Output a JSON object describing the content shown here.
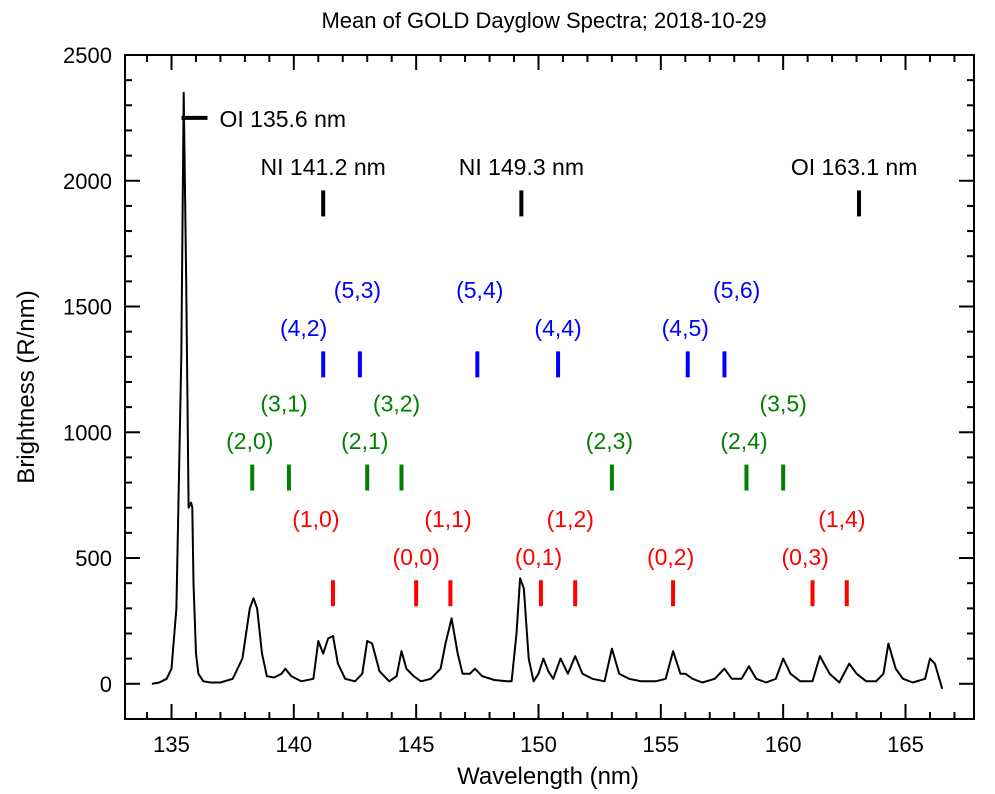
{
  "chart_data": {
    "type": "line",
    "title": "Mean of GOLD Dayglow Spectra; 2018-10-29",
    "xlabel": "Wavelength (nm)",
    "ylabel": "Brightness (R/nm)",
    "xlim": [
      133.1,
      167.8
    ],
    "ylim": [
      -140,
      2500
    ],
    "x_ticks": [
      135,
      140,
      145,
      150,
      155,
      160,
      165
    ],
    "y_ticks": [
      0,
      500,
      1000,
      1500,
      2000,
      2500
    ],
    "x_minor_step": 1,
    "y_minor_step": 100,
    "legend_marker": {
      "x": 135.9,
      "y": 2250,
      "label": "OI 135.6 nm",
      "color": "#000000"
    },
    "series": [
      {
        "color": "#000000",
        "x": [
          134.2,
          134.5,
          134.8,
          135.0,
          135.2,
          135.4,
          135.5,
          135.6,
          135.7,
          135.8,
          135.85,
          135.9,
          136.0,
          136.1,
          136.3,
          136.6,
          137.0,
          137.5,
          137.9,
          138.2,
          138.35,
          138.5,
          138.7,
          138.9,
          139.2,
          139.5,
          139.65,
          139.9,
          140.3,
          140.8,
          141.0,
          141.2,
          141.4,
          141.6,
          141.8,
          142.1,
          142.5,
          142.8,
          143.0,
          143.2,
          143.5,
          143.9,
          144.2,
          144.4,
          144.6,
          144.9,
          145.2,
          145.6,
          146.0,
          146.2,
          146.45,
          146.7,
          146.9,
          147.2,
          147.4,
          147.7,
          148.2,
          148.7,
          148.9,
          149.1,
          149.25,
          149.4,
          149.6,
          149.8,
          150.0,
          150.2,
          150.4,
          150.6,
          150.9,
          151.2,
          151.5,
          151.8,
          152.2,
          152.7,
          153.0,
          153.3,
          153.7,
          154.2,
          154.8,
          155.2,
          155.5,
          155.8,
          156.0,
          156.3,
          156.7,
          157.2,
          157.6,
          157.9,
          158.3,
          158.6,
          158.9,
          159.3,
          159.7,
          160.0,
          160.3,
          160.7,
          161.2,
          161.5,
          161.9,
          162.3,
          162.7,
          163.0,
          163.4,
          163.8,
          164.1,
          164.3,
          164.6,
          164.9,
          165.3,
          165.8,
          166.0,
          166.2,
          166.5
        ],
        "values": [
          0,
          5,
          20,
          60,
          300,
          1300,
          2350,
          1600,
          700,
          720,
          700,
          400,
          120,
          40,
          10,
          5,
          5,
          20,
          100,
          300,
          340,
          300,
          120,
          30,
          25,
          40,
          60,
          30,
          10,
          20,
          170,
          120,
          180,
          190,
          80,
          20,
          10,
          40,
          170,
          160,
          50,
          10,
          30,
          130,
          60,
          30,
          10,
          20,
          60,
          160,
          260,
          120,
          40,
          40,
          60,
          30,
          15,
          10,
          10,
          200,
          420,
          380,
          100,
          10,
          40,
          100,
          50,
          20,
          100,
          40,
          110,
          40,
          20,
          10,
          140,
          40,
          20,
          10,
          10,
          20,
          130,
          40,
          40,
          20,
          5,
          20,
          60,
          20,
          20,
          70,
          20,
          5,
          20,
          100,
          40,
          10,
          10,
          110,
          40,
          5,
          80,
          40,
          10,
          10,
          40,
          160,
          60,
          20,
          5,
          20,
          100,
          80,
          -20
        ]
      }
    ],
    "line_markers": [
      {
        "label": "NI 141.2 nm",
        "x": 141.2,
        "y": 1910,
        "color": "#000000",
        "label_x": 141.2,
        "label_y": 2055
      },
      {
        "label": "NI 149.3 nm",
        "x": 149.3,
        "y": 1910,
        "color": "#000000",
        "label_x": 149.3,
        "label_y": 2055
      },
      {
        "label": "OI 163.1 nm",
        "x": 163.1,
        "y": 1910,
        "color": "#000000",
        "label_x": 162.9,
        "label_y": 2055
      },
      {
        "label": "(4,2)",
        "x": 141.2,
        "y": 1270,
        "color": "#0000ff",
        "label_x": 140.4,
        "label_y": 1415
      },
      {
        "label": "(5,3)",
        "x": 142.7,
        "y": 1270,
        "color": "#0000ff",
        "label_x": 142.6,
        "label_y": 1565
      },
      {
        "label": "(5,4)",
        "x": 147.5,
        "y": 1270,
        "color": "#0000ff",
        "label_x": 147.6,
        "label_y": 1565
      },
      {
        "label": "(4,4)",
        "x": 150.8,
        "y": 1270,
        "color": "#0000ff",
        "label_x": 150.8,
        "label_y": 1415
      },
      {
        "label": "(4,5)",
        "x": 156.1,
        "y": 1270,
        "color": "#0000ff",
        "label_x": 156.0,
        "label_y": 1415
      },
      {
        "label": "(5,6)",
        "x": 157.6,
        "y": 1270,
        "color": "#0000ff",
        "label_x": 158.1,
        "label_y": 1565
      },
      {
        "label": "(2,0)",
        "x": 138.3,
        "y": 820,
        "color": "#008000",
        "label_x": 138.2,
        "label_y": 965
      },
      {
        "label": "(3,1)",
        "x": 139.8,
        "y": 820,
        "color": "#008000",
        "label_x": 139.6,
        "label_y": 1115
      },
      {
        "label": "(2,1)",
        "x": 143.0,
        "y": 820,
        "color": "#008000",
        "label_x": 142.9,
        "label_y": 965
      },
      {
        "label": "(3,2)",
        "x": 144.4,
        "y": 820,
        "color": "#008000",
        "label_x": 144.2,
        "label_y": 1115
      },
      {
        "label": "(2,3)",
        "x": 153.0,
        "y": 820,
        "color": "#008000",
        "label_x": 152.9,
        "label_y": 965
      },
      {
        "label": "(2,4)",
        "x": 158.5,
        "y": 820,
        "color": "#008000",
        "label_x": 158.4,
        "label_y": 965
      },
      {
        "label": "(3,5)",
        "x": 160.0,
        "y": 820,
        "color": "#008000",
        "label_x": 160.0,
        "label_y": 1115
      },
      {
        "label": "(1,0)",
        "x": 141.6,
        "y": 360,
        "color": "#ff0000",
        "label_x": 140.9,
        "label_y": 655
      },
      {
        "label": "(0,0)",
        "x": 145.0,
        "y": 360,
        "color": "#ff0000",
        "label_x": 145.0,
        "label_y": 505
      },
      {
        "label": "(1,1)",
        "x": 146.4,
        "y": 360,
        "color": "#ff0000",
        "label_x": 146.3,
        "label_y": 655
      },
      {
        "label": "(0,1)",
        "x": 150.1,
        "y": 360,
        "color": "#ff0000",
        "label_x": 150.0,
        "label_y": 505
      },
      {
        "label": "(1,2)",
        "x": 151.5,
        "y": 360,
        "color": "#ff0000",
        "label_x": 151.3,
        "label_y": 655
      },
      {
        "label": "(0,2)",
        "x": 155.5,
        "y": 360,
        "color": "#ff0000",
        "label_x": 155.4,
        "label_y": 505
      },
      {
        "label": "(0,3)",
        "x": 161.2,
        "y": 360,
        "color": "#ff0000",
        "label_x": 160.9,
        "label_y": 505
      },
      {
        "label": "(1,4)",
        "x": 162.6,
        "y": 360,
        "color": "#ff0000",
        "label_x": 162.4,
        "label_y": 655
      }
    ]
  }
}
